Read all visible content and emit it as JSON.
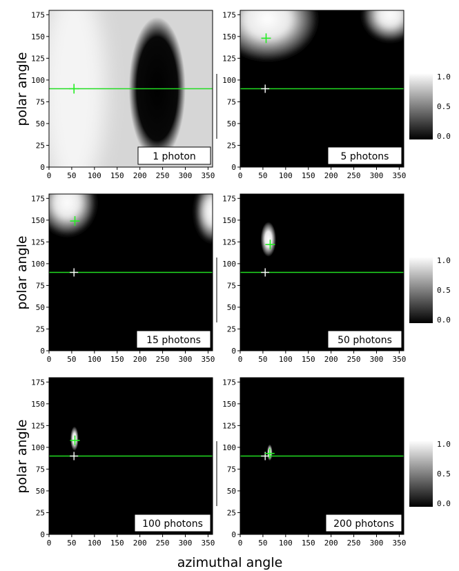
{
  "chart_data": {
    "type": "heatmap",
    "xlabel": "azimuthal angle",
    "ylabel": "polar angle",
    "xlim": [
      0,
      360
    ],
    "ylim": [
      0,
      180
    ],
    "xticks": [
      0,
      50,
      100,
      150,
      200,
      250,
      300,
      350
    ],
    "yticks": [
      0,
      25,
      50,
      75,
      100,
      125,
      150,
      175
    ],
    "colorbar": {
      "ticks": [
        "1.0",
        "0.5",
        "0.0"
      ],
      "range": [
        0,
        1
      ],
      "colormap": "grayscale"
    },
    "true_direction": {
      "azimuth": 55,
      "polar": 90
    },
    "reference_line_polar": 90,
    "colors": {
      "line": "#22dd22",
      "true_marker": "#ffffff",
      "estimate_marker": "#22ee22"
    },
    "panels": [
      {
        "label": "1 photon",
        "estimate": {
          "azimuth": 55,
          "polar": 90
        },
        "blobs": [],
        "dark_region": {
          "azimuth": 238,
          "polar": 90,
          "width": 125,
          "height": 165
        }
      },
      {
        "label": "5 photons",
        "estimate": {
          "azimuth": 57,
          "polar": 148
        },
        "blobs": [
          {
            "azimuth": 60,
            "polar": 170,
            "width": 220,
            "height": 95
          },
          {
            "azimuth": 330,
            "polar": 175,
            "width": 120,
            "height": 60
          }
        ]
      },
      {
        "label": "15 photons",
        "estimate": {
          "azimuth": 57,
          "polar": 149
        },
        "blobs": [
          {
            "azimuth": 40,
            "polar": 170,
            "width": 125,
            "height": 75
          },
          {
            "azimuth": 360,
            "polar": 160,
            "width": 75,
            "height": 70
          }
        ]
      },
      {
        "label": "50 photons",
        "estimate": {
          "azimuth": 66,
          "polar": 122
        },
        "blobs": [
          {
            "azimuth": 62,
            "polar": 128,
            "width": 34,
            "height": 40
          }
        ]
      },
      {
        "label": "100 photons",
        "estimate": {
          "azimuth": 57,
          "polar": 108
        },
        "blobs": [
          {
            "azimuth": 56,
            "polar": 110,
            "width": 18,
            "height": 28
          }
        ]
      },
      {
        "label": "200 photons",
        "estimate": {
          "azimuth": 65,
          "polar": 93
        },
        "blobs": [
          {
            "azimuth": 65,
            "polar": 94,
            "width": 12,
            "height": 19
          }
        ]
      }
    ]
  }
}
